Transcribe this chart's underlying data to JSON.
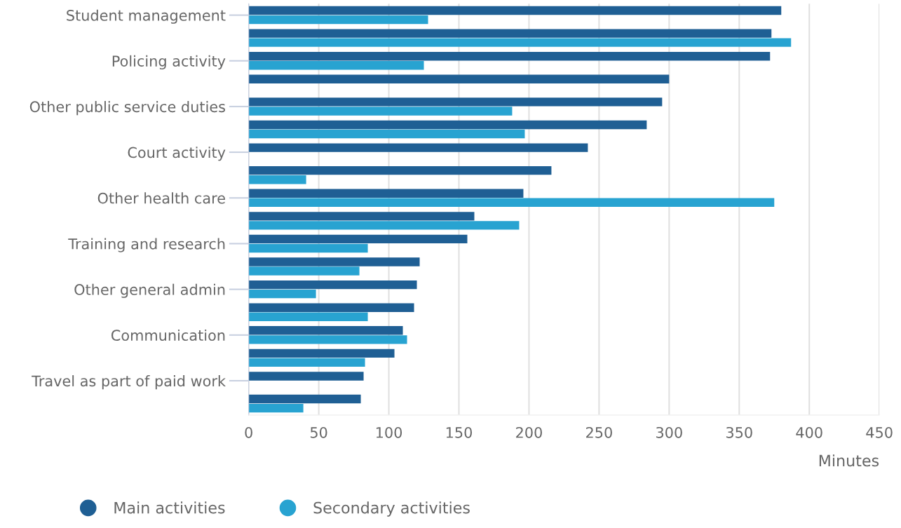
{
  "chart_data": {
    "type": "bar",
    "orientation": "horizontal",
    "categories": [
      "Student management",
      null,
      "Policing activity",
      null,
      "Other public service duties",
      null,
      "Court activity",
      null,
      "Other health care",
      null,
      "Training and research",
      null,
      "Other general admin",
      null,
      "Communication",
      null,
      "Travel as part of paid work",
      null
    ],
    "series": [
      {
        "name": "Main activities",
        "color": "#1f5f94",
        "values": [
          380,
          373,
          372,
          300,
          295,
          284,
          242,
          216,
          196,
          161,
          156,
          122,
          120,
          118,
          110,
          104,
          82,
          80
        ]
      },
      {
        "name": "Secondary activities",
        "color": "#28a3d1",
        "values": [
          128,
          387,
          125,
          null,
          188,
          197,
          null,
          41,
          375,
          193,
          85,
          79,
          48,
          85,
          113,
          83,
          null,
          39
        ]
      }
    ],
    "xlabel": "Minutes",
    "xlim": [
      0,
      450
    ],
    "xticks": [
      0,
      50,
      100,
      150,
      200,
      250,
      300,
      350,
      400,
      450
    ],
    "grid": "x",
    "legend": "bottom left"
  }
}
